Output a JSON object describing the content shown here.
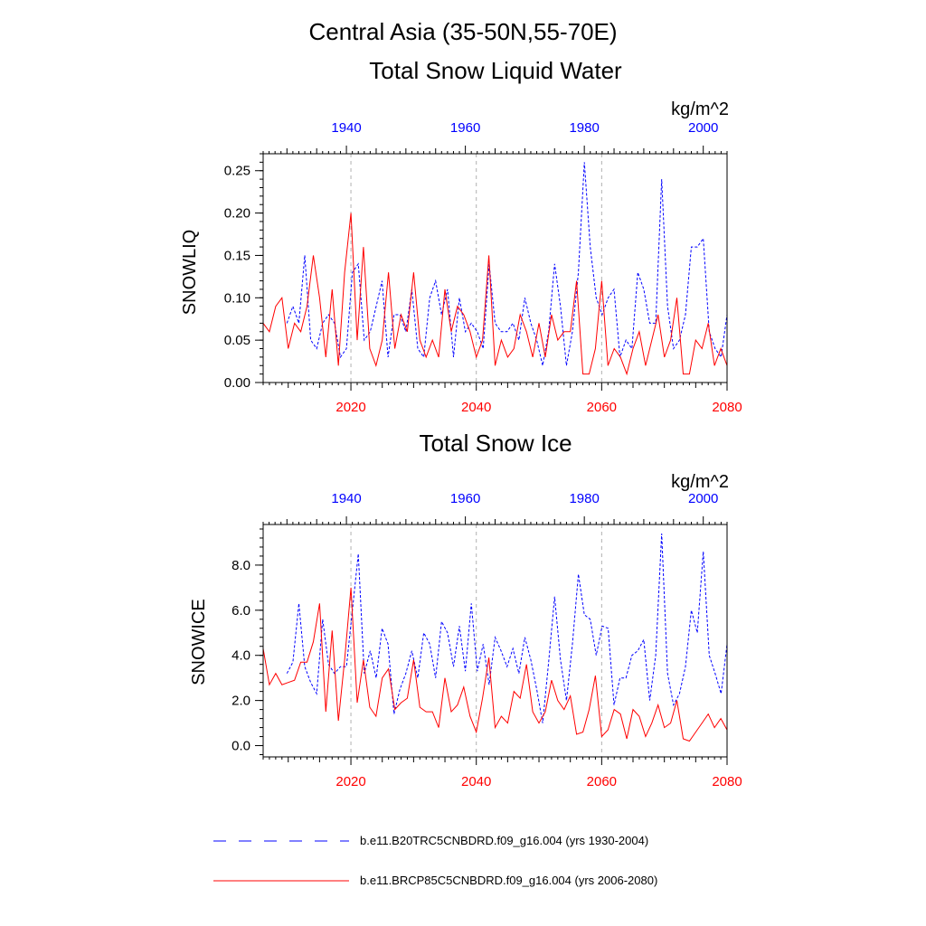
{
  "page": {
    "region_title": "Central Asia (35-50N,55-70E)"
  },
  "legend": {
    "items": [
      {
        "label": "b.e11.B20TRC5CNBDRD.f09_g16.004 (yrs 1930-2004)",
        "color": "#0000ff",
        "style": "dashed"
      },
      {
        "label": "b.e11.BRCP85C5CNBDRD.f09_g16.004 (yrs 2006-2080)",
        "color": "#ff0000",
        "style": "solid"
      }
    ]
  },
  "chart_data": [
    {
      "type": "line",
      "title": "Total Snow Liquid Water",
      "units": "kg/m^2",
      "ylabel": "SNOWLIQ",
      "ylim": [
        0,
        0.27
      ],
      "yticks": [
        "0.00",
        "0.05",
        "0.10",
        "0.15",
        "0.20",
        "0.25"
      ],
      "yticks_values": [
        0,
        0.05,
        0.1,
        0.15,
        0.2,
        0.25
      ],
      "x_bottom": {
        "range": [
          2006,
          2080
        ],
        "ticks": [
          "2020",
          "2040",
          "2060",
          "2080"
        ],
        "color": "#ff0000"
      },
      "x_top": {
        "range": [
          1926,
          2004
        ],
        "ticks": [
          "1940",
          "1960",
          "1980",
          "2000"
        ],
        "color": "#0000ff"
      },
      "grid_years": [
        2020,
        2040,
        2060
      ],
      "series": [
        {
          "axis": "top",
          "color": "#0000ff",
          "style": "dashed",
          "x": [
            1930,
            1931,
            1932,
            1933,
            1934,
            1935,
            1936,
            1937,
            1938,
            1939,
            1940,
            1941,
            1942,
            1943,
            1944,
            1945,
            1946,
            1947,
            1948,
            1949,
            1950,
            1951,
            1952,
            1953,
            1954,
            1955,
            1956,
            1957,
            1958,
            1959,
            1960,
            1961,
            1962,
            1963,
            1964,
            1965,
            1966,
            1967,
            1968,
            1969,
            1970,
            1971,
            1972,
            1973,
            1974,
            1975,
            1976,
            1977,
            1978,
            1979,
            1980,
            1981,
            1982,
            1983,
            1984,
            1985,
            1986,
            1987,
            1988,
            1989,
            1990,
            1991,
            1992,
            1993,
            1994,
            1995,
            1996,
            1997,
            1998,
            1999,
            2000,
            2001,
            2002,
            2003,
            2004
          ],
          "values": [
            0.07,
            0.09,
            0.07,
            0.15,
            0.05,
            0.04,
            0.07,
            0.08,
            0.07,
            0.03,
            0.04,
            0.13,
            0.14,
            0.05,
            0.06,
            0.09,
            0.12,
            0.03,
            0.08,
            0.08,
            0.06,
            0.11,
            0.04,
            0.03,
            0.1,
            0.12,
            0.08,
            0.11,
            0.03,
            0.1,
            0.06,
            0.07,
            0.06,
            0.04,
            0.14,
            0.07,
            0.06,
            0.06,
            0.07,
            0.05,
            0.1,
            0.07,
            0.05,
            0.02,
            0.06,
            0.14,
            0.09,
            0.02,
            0.06,
            0.13,
            0.26,
            0.16,
            0.1,
            0.08,
            0.1,
            0.11,
            0.03,
            0.05,
            0.04,
            0.13,
            0.11,
            0.07,
            0.07,
            0.24,
            0.09,
            0.04,
            0.05,
            0.08,
            0.16,
            0.16,
            0.17,
            0.06,
            0.04,
            0.03,
            0.08
          ]
        },
        {
          "axis": "bottom",
          "color": "#ff0000",
          "style": "solid",
          "x": [
            2006,
            2007,
            2008,
            2009,
            2010,
            2011,
            2012,
            2013,
            2014,
            2015,
            2016,
            2017,
            2018,
            2019,
            2020,
            2021,
            2022,
            2023,
            2024,
            2025,
            2026,
            2027,
            2028,
            2029,
            2030,
            2031,
            2032,
            2033,
            2034,
            2035,
            2036,
            2037,
            2038,
            2039,
            2040,
            2041,
            2042,
            2043,
            2044,
            2045,
            2046,
            2047,
            2048,
            2049,
            2050,
            2051,
            2052,
            2053,
            2054,
            2055,
            2056,
            2057,
            2058,
            2059,
            2060,
            2061,
            2062,
            2063,
            2064,
            2065,
            2066,
            2067,
            2068,
            2069,
            2070,
            2071,
            2072,
            2073,
            2074,
            2075,
            2076,
            2077,
            2078,
            2079,
            2080
          ],
          "values": [
            0.07,
            0.06,
            0.09,
            0.1,
            0.04,
            0.07,
            0.06,
            0.09,
            0.15,
            0.1,
            0.03,
            0.11,
            0.02,
            0.13,
            0.2,
            0.05,
            0.16,
            0.04,
            0.02,
            0.05,
            0.13,
            0.04,
            0.08,
            0.06,
            0.13,
            0.05,
            0.03,
            0.05,
            0.03,
            0.11,
            0.06,
            0.09,
            0.08,
            0.06,
            0.03,
            0.05,
            0.15,
            0.02,
            0.05,
            0.03,
            0.04,
            0.08,
            0.06,
            0.03,
            0.07,
            0.03,
            0.08,
            0.05,
            0.06,
            0.06,
            0.12,
            0.01,
            0.01,
            0.04,
            0.12,
            0.02,
            0.04,
            0.03,
            0.01,
            0.04,
            0.06,
            0.02,
            0.05,
            0.08,
            0.03,
            0.05,
            0.1,
            0.01,
            0.01,
            0.05,
            0.04,
            0.07,
            0.02,
            0.04,
            0.02
          ]
        }
      ]
    },
    {
      "type": "line",
      "title": "Total Snow Ice",
      "units": "kg/m^2",
      "ylabel": "SNOWICE",
      "ylim": [
        -0.5,
        9.8
      ],
      "yticks": [
        "0.0",
        "2.0",
        "4.0",
        "6.0",
        "8.0"
      ],
      "yticks_values": [
        0,
        2,
        4,
        6,
        8
      ],
      "x_bottom": {
        "range": [
          2006,
          2080
        ],
        "ticks": [
          "2020",
          "2040",
          "2060",
          "2080"
        ],
        "color": "#ff0000"
      },
      "x_top": {
        "range": [
          1926,
          2004
        ],
        "ticks": [
          "1940",
          "1960",
          "1980",
          "2000"
        ],
        "color": "#0000ff"
      },
      "grid_years": [
        2020,
        2040,
        2060
      ],
      "series": [
        {
          "axis": "top",
          "color": "#0000ff",
          "style": "dashed",
          "x": [
            1930,
            1931,
            1932,
            1933,
            1934,
            1935,
            1936,
            1937,
            1938,
            1939,
            1940,
            1941,
            1942,
            1943,
            1944,
            1945,
            1946,
            1947,
            1948,
            1949,
            1950,
            1951,
            1952,
            1953,
            1954,
            1955,
            1956,
            1957,
            1958,
            1959,
            1960,
            1961,
            1962,
            1963,
            1964,
            1965,
            1966,
            1967,
            1968,
            1969,
            1970,
            1971,
            1972,
            1973,
            1974,
            1975,
            1976,
            1977,
            1978,
            1979,
            1980,
            1981,
            1982,
            1983,
            1984,
            1985,
            1986,
            1987,
            1988,
            1989,
            1990,
            1991,
            1992,
            1993,
            1994,
            1995,
            1996,
            1997,
            1998,
            1999,
            2000,
            2001,
            2002,
            2003,
            2004
          ],
          "values": [
            3.2,
            3.7,
            6.3,
            3.5,
            2.8,
            2.3,
            5.6,
            3.6,
            3.2,
            3.5,
            3.5,
            6.0,
            8.5,
            3.2,
            4.2,
            3.0,
            5.2,
            4.5,
            1.4,
            2.5,
            3.2,
            4.2,
            3.0,
            5.0,
            4.5,
            3.0,
            5.5,
            5.0,
            3.5,
            5.3,
            3.3,
            6.3,
            3.3,
            4.5,
            2.7,
            4.8,
            4.2,
            3.5,
            4.3,
            3.2,
            4.8,
            3.8,
            2.5,
            1.0,
            3.7,
            6.6,
            3.8,
            2.0,
            4.5,
            7.6,
            5.8,
            5.6,
            4.0,
            5.3,
            5.2,
            1.8,
            3.0,
            3.0,
            4.0,
            4.2,
            4.7,
            2.0,
            4.0,
            9.4,
            3.2,
            1.8,
            2.3,
            3.5,
            6.0,
            5.0,
            8.6,
            4.0,
            3.2,
            2.3,
            4.5
          ]
        },
        {
          "axis": "bottom",
          "color": "#ff0000",
          "style": "solid",
          "x": [
            2006,
            2007,
            2008,
            2009,
            2010,
            2011,
            2012,
            2013,
            2014,
            2015,
            2016,
            2017,
            2018,
            2019,
            2020,
            2021,
            2022,
            2023,
            2024,
            2025,
            2026,
            2027,
            2028,
            2029,
            2030,
            2031,
            2032,
            2033,
            2034,
            2035,
            2036,
            2037,
            2038,
            2039,
            2040,
            2041,
            2042,
            2043,
            2044,
            2045,
            2046,
            2047,
            2048,
            2049,
            2050,
            2051,
            2052,
            2053,
            2054,
            2055,
            2056,
            2057,
            2058,
            2059,
            2060,
            2061,
            2062,
            2063,
            2064,
            2065,
            2066,
            2067,
            2068,
            2069,
            2070,
            2071,
            2072,
            2073,
            2074,
            2075,
            2076,
            2077,
            2078,
            2079,
            2080
          ],
          "values": [
            4.3,
            2.7,
            3.2,
            2.7,
            2.8,
            2.9,
            3.7,
            3.7,
            4.6,
            6.3,
            1.5,
            5.1,
            1.1,
            3.8,
            7.0,
            1.9,
            3.8,
            1.7,
            1.3,
            3.0,
            3.4,
            1.6,
            1.9,
            2.1,
            3.8,
            1.7,
            1.5,
            1.5,
            0.8,
            3.0,
            1.5,
            1.8,
            2.6,
            1.3,
            0.6,
            2.1,
            3.9,
            0.8,
            1.3,
            1.0,
            2.4,
            2.1,
            3.6,
            1.5,
            1.0,
            1.5,
            2.9,
            2.0,
            1.6,
            2.2,
            0.5,
            0.6,
            1.6,
            3.1,
            0.4,
            0.7,
            1.6,
            1.4,
            0.3,
            1.6,
            1.3,
            0.4,
            1.0,
            1.8,
            0.8,
            1.0,
            2.0,
            0.3,
            0.2,
            0.6,
            1.0,
            1.4,
            0.8,
            1.2,
            0.7
          ]
        }
      ]
    }
  ]
}
